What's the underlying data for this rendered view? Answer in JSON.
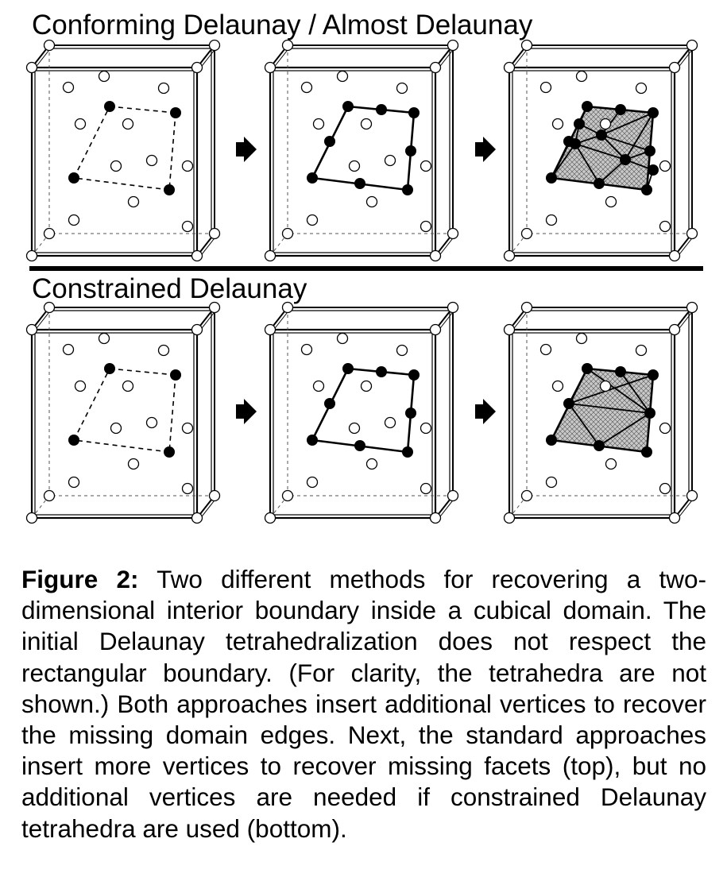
{
  "figure": {
    "top_title": "Conforming Delaunay / Almost Delaunay",
    "bottom_title": "Constrained Delaunay"
  },
  "caption": {
    "label": "Figure 2:",
    "text": "Two different methods for recovering a two-dimensional interior boundary inside a cubical domain. The initial Delaunay tetrahedralization does not respect the rectangular boundary. (For clarity, the tetrahedra are not shown.) Both approaches insert additional vertices to recover the missing domain edges. Next, the standard approaches insert more vertices to recover missing facets (top), but no additional vertices are needed if constrained Delaunay tetrahedra are used (bottom)."
  },
  "colors": {
    "ink": "#000000",
    "background": "#ffffff",
    "hatch_fill": "#bdbdbd"
  }
}
